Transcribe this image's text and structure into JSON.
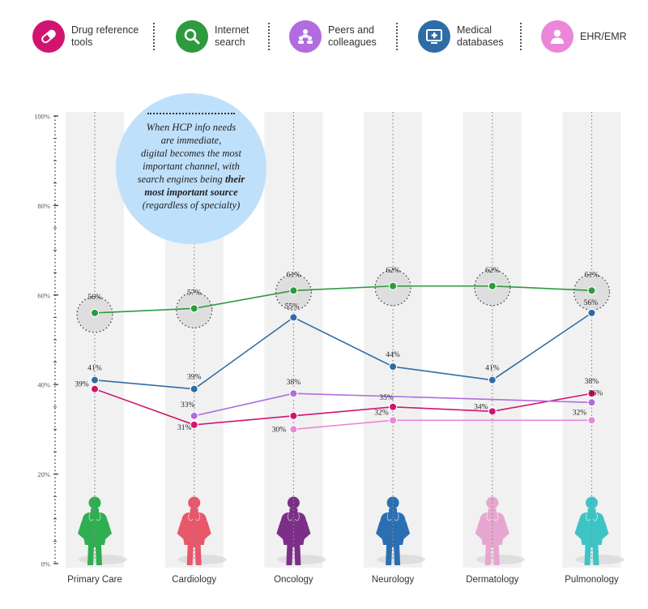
{
  "legend": [
    {
      "label_l1": "Drug reference",
      "label_l2": "tools",
      "color": "#d1146f",
      "icon": "pill-icon"
    },
    {
      "label_l1": "Internet",
      "label_l2": "search",
      "color": "#2d9a3e",
      "icon": "search-icon"
    },
    {
      "label_l1": "Peers and",
      "label_l2": "colleagues",
      "color": "#b16ce0",
      "icon": "people-icon"
    },
    {
      "label_l1": "Medical",
      "label_l2": "databases",
      "color": "#2f6ca5",
      "icon": "monitor-cross-icon"
    },
    {
      "label_l1": "EHR/EMR",
      "label_l2": "",
      "color": "#ea87d9",
      "icon": "person-icon"
    }
  ],
  "callout": {
    "l1": "When HCP info needs",
    "l2": "are immediate,",
    "l3": "digital becomes the most",
    "l4": "important channel, with",
    "l5": "search engines being ",
    "l5_bold": "their",
    "l6_bold": "most important source",
    "l7": "(regardless of specialty)"
  },
  "figure_colors": [
    "#2fae52",
    "#e8576a",
    "#7b2f86",
    "#2b6fb3",
    "#e7a6cf",
    "#3fc4c6"
  ],
  "chart_data": {
    "type": "line",
    "categories": [
      "Primary Care",
      "Cardiology",
      "Oncology",
      "Neurology",
      "Dermatology",
      "Pulmonology"
    ],
    "ylim": [
      0,
      100
    ],
    "y_ticks": [
      0,
      20,
      40,
      60,
      80,
      100
    ],
    "y_tick_labels": [
      "0%",
      "20%",
      "40%",
      "60%",
      "80%",
      "100%"
    ],
    "grid": false,
    "series": [
      {
        "name": "Internet search",
        "color": "#2d9a3e",
        "values": [
          56,
          57,
          61,
          62,
          62,
          61
        ],
        "labels": [
          "56%",
          "57%",
          "61%",
          "62%",
          "62%",
          "61%"
        ],
        "highlight": true
      },
      {
        "name": "Medical databases",
        "color": "#2f6ca5",
        "values": [
          41,
          39,
          55,
          44,
          41,
          56
        ],
        "labels": [
          "41%",
          "39%",
          "55%",
          "44%",
          "41%",
          "56%"
        ]
      },
      {
        "name": "Drug reference tools",
        "color": "#d1146f",
        "values": [
          39,
          31,
          33,
          35,
          34,
          38
        ],
        "labels": [
          "39%",
          "31%",
          "",
          "35%",
          "34%",
          "38%"
        ]
      },
      {
        "name": "Peers and colleagues",
        "color": "#b16ce0",
        "values": [
          null,
          33,
          38,
          null,
          null,
          36
        ],
        "labels": [
          "",
          "33%",
          "38%",
          "",
          "",
          "36%"
        ]
      },
      {
        "name": "EHR/EMR",
        "color": "#ea87d9",
        "values": [
          null,
          null,
          30,
          32,
          null,
          32
        ],
        "labels": [
          "",
          "",
          "30%",
          "32%",
          "",
          "32%"
        ]
      }
    ]
  }
}
